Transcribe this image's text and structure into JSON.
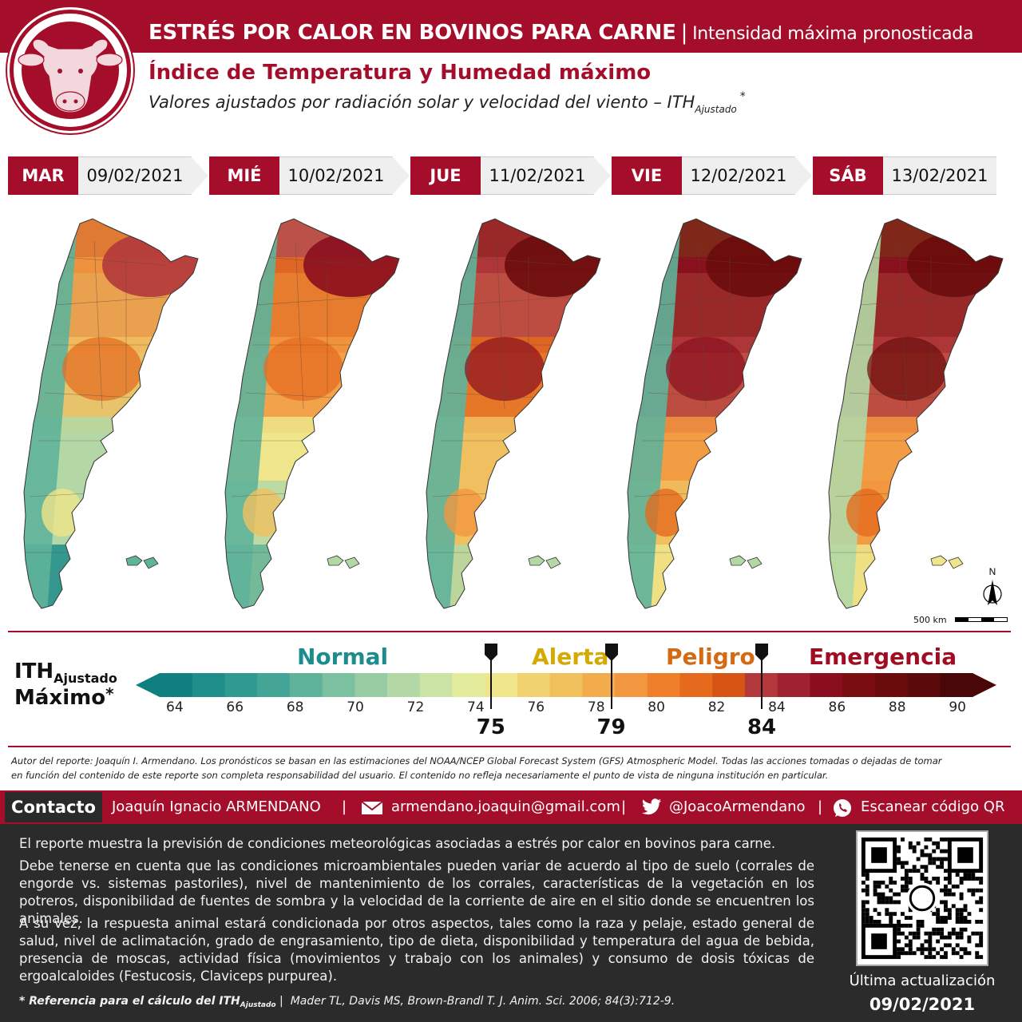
{
  "header": {
    "title": "ESTRÉS POR CALOR EN BOVINOS PARA CARNE",
    "separator": "|",
    "title_suffix": "Intensidad máxima pronosticada",
    "subtitle": "Índice de Temperatura y Humedad máximo",
    "description": "Valores ajustados por radiación solar y velocidad del viento – ITH",
    "description_sub": "Ajustado",
    "description_sup": "*"
  },
  "days": [
    {
      "name": "MAR",
      "date": "09/02/2021",
      "level": 0.15
    },
    {
      "name": "MIÉ",
      "date": "10/02/2021",
      "level": 0.25
    },
    {
      "name": "JUE",
      "date": "11/02/2021",
      "level": 0.5
    },
    {
      "name": "VIE",
      "date": "12/02/2021",
      "level": 0.62
    },
    {
      "name": "SÁB",
      "date": "13/02/2021",
      "level": 0.78
    }
  ],
  "map_extras": {
    "north": "N",
    "scale_label": "500 km"
  },
  "legend": {
    "title_main": "ITH",
    "title_sub": "Ajustado",
    "title_line2": "Máximo",
    "title_sup": "*",
    "categories": [
      {
        "label": "Normal",
        "color": "#1c8c8e"
      },
      {
        "label": "Alerta",
        "color": "#d4a900"
      },
      {
        "label": "Peligro",
        "color": "#d56a14"
      },
      {
        "label": "Emergencia",
        "color": "#a00d22"
      }
    ],
    "ticks": [
      "64",
      "66",
      "68",
      "70",
      "72",
      "74",
      "76",
      "78",
      "80",
      "82",
      "84",
      "86",
      "88",
      "90"
    ],
    "thresholds": [
      "75",
      "79",
      "84"
    ],
    "colors": [
      "#0f7f80",
      "#1f8d8a",
      "#2f9a90",
      "#44a596",
      "#5fb39a",
      "#7bc09f",
      "#97cca2",
      "#b3d8a6",
      "#cce3a6",
      "#e2ec9c",
      "#efe58a",
      "#f0d370",
      "#efc05c",
      "#f2ac4c",
      "#f29640",
      "#ef7f2a",
      "#e56a1e",
      "#d65414",
      "#b3383b",
      "#9e2230",
      "#8a0e1e",
      "#7a0d10",
      "#6b0c0c",
      "#5a0a0a",
      "#4a0707"
    ]
  },
  "disclaimer": [
    "Autor del reporte: Joaquín I. Armendano. Los pronósticos se basan en las estimaciones del NOAA/NCEP Global Forecast System (GFS) Atmospheric Model. Todas las acciones tomadas o dejadas de tomar",
    "en función del contenido de este reporte son completa responsabilidad del usuario. El contenido no refleja necesariamente el punto de vista de ninguna institución en particular."
  ],
  "contact": {
    "label": "Contacto",
    "name": "Joaquín Ignacio ARMENDANO",
    "email": "armendano.joaquin@gmail.com",
    "twitter": "@JoacoArmendano",
    "qr_text": "Escanear código QR",
    "pipe": "|"
  },
  "info": {
    "p1": "El reporte muestra la previsión de condiciones meteorológicas asociadas a estrés por calor en bovinos para carne.",
    "p2": "Debe tenerse en cuenta que las condiciones microambientales pueden variar de acuerdo al tipo de suelo (corrales de engorde vs. sistemas pastoriles), nivel de mantenimiento de los corrales, características de la vegetación en los potreros, disponibilidad de fuentes de sombra y la velocidad de la corriente de aire en el sitio donde se encuentren los animales.",
    "p3": "A su vez, la respuesta animal estará condicionada por otros aspectos, tales como la raza y pelaje, estado general de salud, nivel de aclimatación, grado de engrasamiento, tipo de dieta, disponibilidad y temperatura del agua de bebida, presencia de moscas, actividad física (movimientos y trabajo con los animales) y consumo de dosis tóxicas de ergoalcaloides (Festucosis, Claviceps purpurea)."
  },
  "footer": {
    "ref_label": "* Referencia para el cálculo del ITH",
    "ref_sub": "Ajustado",
    "ref_text": "Mader TL, Davis MS, Brown-Brandl T.  J. Anim. Sci. 2006; 84(3):712-9.",
    "updated_label": "Última actualización",
    "updated_date": "09/02/2021"
  }
}
